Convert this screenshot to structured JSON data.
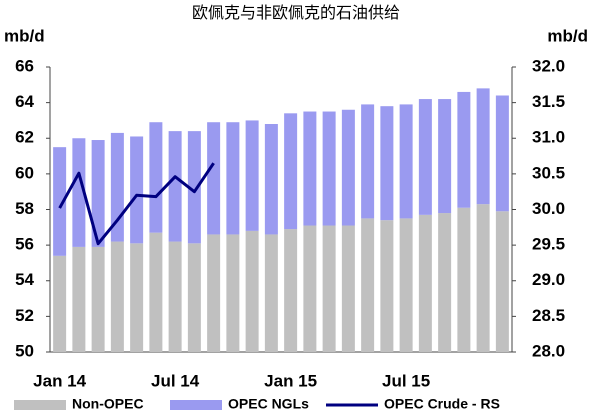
{
  "chart_data": {
    "type": "stacked-bar-line",
    "title": "欧佩克与非欧佩克的石油供给",
    "y_label": "mb/d",
    "y2_label": "mb/d",
    "categories": [
      "Jan 14",
      null,
      null,
      null,
      null,
      null,
      "Jul 14",
      null,
      null,
      null,
      null,
      null,
      "Jan 15",
      null,
      null,
      null,
      null,
      null,
      "Jul 15",
      null,
      null,
      null,
      null,
      null
    ],
    "ylim": [
      50,
      66
    ],
    "yticks": [
      50,
      52,
      54,
      56,
      58,
      60,
      62,
      64,
      66
    ],
    "y2lim": [
      28,
      32
    ],
    "y2ticks": [
      {
        "value": 28,
        "label": "28.0"
      },
      28.5,
      {
        "value": 29,
        "label": "29.0"
      },
      29.5,
      {
        "value": 30,
        "label": "30.0"
      },
      30.5,
      {
        "value": 31,
        "label": "31.0"
      },
      31.5,
      {
        "value": 32,
        "label": "32.0"
      }
    ],
    "legend": "bottom",
    "series": [
      {
        "name": "Non-OPEC",
        "color": "#c0c0c0",
        "kind": "bar",
        "values": [
          55.4,
          55.9,
          55.9,
          56.2,
          56.1,
          56.7,
          56.2,
          56.1,
          56.6,
          56.6,
          56.8,
          56.6,
          56.9,
          57.1,
          57.1,
          57.1,
          57.5,
          57.4,
          57.5,
          57.7,
          57.8,
          58.1,
          58.3,
          57.9
        ]
      },
      {
        "name": "OPEC NGLs",
        "color": "#9a9af0",
        "kind": "bar",
        "values": [
          6.1,
          6.1,
          6.0,
          6.1,
          6.0,
          6.2,
          6.2,
          6.3,
          6.3,
          6.3,
          6.2,
          6.2,
          6.5,
          6.4,
          6.4,
          6.5,
          6.4,
          6.4,
          6.4,
          6.5,
          6.4,
          6.5,
          6.5,
          6.5
        ]
      },
      {
        "name": "OPEC Crude - RS",
        "color": "#000080",
        "kind": "line",
        "axis": "y2",
        "values": [
          30.02,
          30.51,
          29.52,
          29.85,
          30.2,
          30.18,
          30.46,
          30.25,
          30.65,
          null,
          null,
          null,
          null,
          null,
          null,
          null,
          null,
          null,
          null,
          null,
          null,
          null,
          null,
          null
        ]
      }
    ]
  }
}
